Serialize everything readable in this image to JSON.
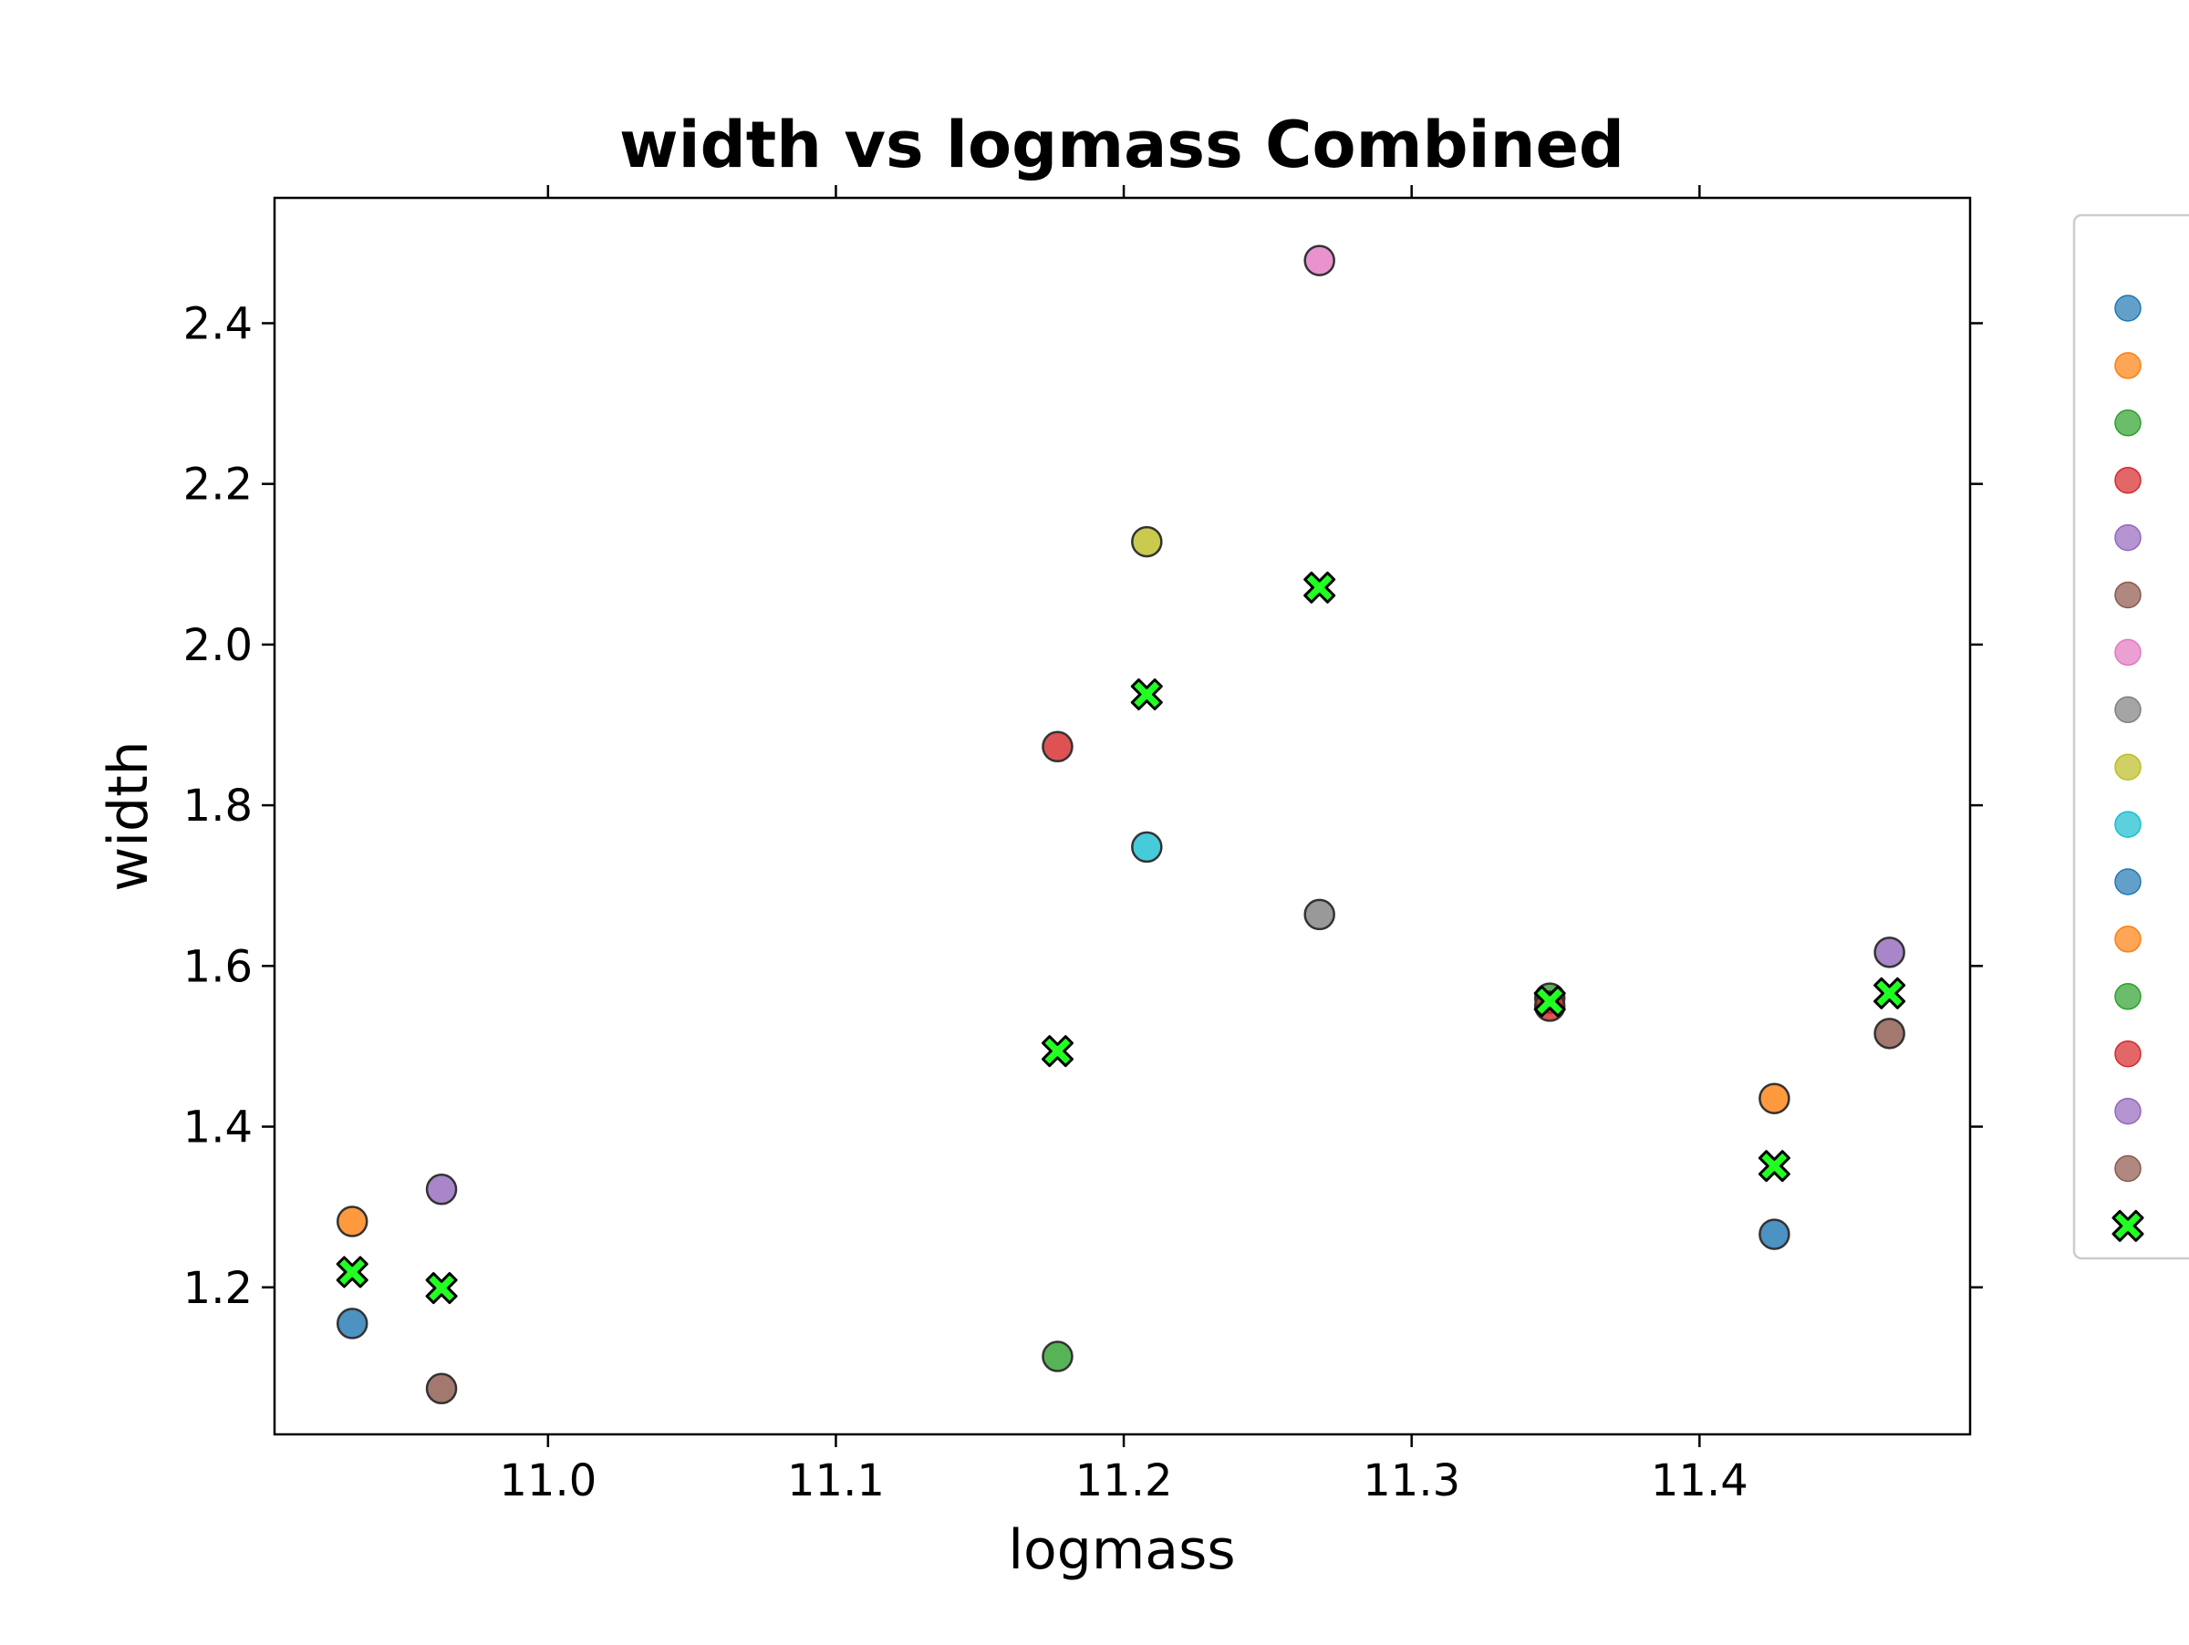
{
  "chart_data": {
    "type": "scatter",
    "title": "width vs logmass Combined",
    "xlabel": "logmass",
    "ylabel": "width",
    "xlim": [
      10.905,
      11.494
    ],
    "ylim": [
      1.017,
      2.556
    ],
    "xticks": [
      "11.0",
      "11.1",
      "11.2",
      "11.3",
      "11.4"
    ],
    "xtick_values": [
      11.0,
      11.1,
      11.2,
      11.3,
      11.4
    ],
    "yticks": [
      "1.2",
      "1.4",
      "1.6",
      "1.8",
      "2.0",
      "2.2",
      "2.4"
    ],
    "ytick_values": [
      1.2,
      1.4,
      1.6,
      1.8,
      2.0,
      2.2,
      2.4
    ],
    "grid": false,
    "legend_placement": "outside-right",
    "marker_colors": [
      "#1f77b4",
      "#ff7f0e",
      "#2ca02c",
      "#d62728",
      "#9467bd",
      "#8c564b",
      "#e377c2",
      "#7f7f7f",
      "#bcbd22",
      "#17becf"
    ],
    "highlight_color": "#22ff22",
    "series": [
      {
        "color": "#1f77b4",
        "points": [
          [
            10.932,
            1.155
          ],
          [
            11.426,
            1.266
          ]
        ]
      },
      {
        "color": "#ff7f0e",
        "points": [
          [
            10.932,
            1.282
          ],
          [
            11.426,
            1.435
          ]
        ]
      },
      {
        "color": "#2ca02c",
        "points": [
          [
            11.177,
            1.114
          ],
          [
            11.348,
            1.56
          ]
        ]
      },
      {
        "color": "#d62728",
        "points": [
          [
            11.177,
            1.873
          ],
          [
            11.348,
            1.55
          ]
        ]
      },
      {
        "color": "#9467bd",
        "points": [
          [
            10.963,
            1.322
          ],
          [
            11.466,
            1.617
          ]
        ]
      },
      {
        "color": "#8c564b",
        "points": [
          [
            10.963,
            1.074
          ],
          [
            11.466,
            1.516
          ]
        ]
      },
      {
        "color": "#e377c2",
        "points": [
          [
            11.268,
            2.478
          ]
        ]
      },
      {
        "color": "#7f7f7f",
        "points": [
          [
            11.268,
            1.664
          ]
        ]
      },
      {
        "color": "#bcbd22",
        "points": [
          [
            11.208,
            2.128
          ]
        ]
      },
      {
        "color": "#17becf",
        "points": [
          [
            11.208,
            1.748
          ]
        ]
      }
    ],
    "combined": {
      "marker": "X",
      "color": "#22ff22",
      "points": [
        [
          10.932,
          1.219
        ],
        [
          10.963,
          1.199
        ],
        [
          11.177,
          1.494
        ],
        [
          11.208,
          1.938
        ],
        [
          11.268,
          2.071
        ],
        [
          11.348,
          1.556
        ],
        [
          11.426,
          1.351
        ],
        [
          11.466,
          1.566
        ]
      ]
    },
    "legend_entries": [
      {
        "color": "#1f77b4",
        "marker": "o"
      },
      {
        "color": "#ff7f0e",
        "marker": "o"
      },
      {
        "color": "#2ca02c",
        "marker": "o"
      },
      {
        "color": "#d62728",
        "marker": "o"
      },
      {
        "color": "#9467bd",
        "marker": "o"
      },
      {
        "color": "#8c564b",
        "marker": "o"
      },
      {
        "color": "#e377c2",
        "marker": "o"
      },
      {
        "color": "#7f7f7f",
        "marker": "o"
      },
      {
        "color": "#bcbd22",
        "marker": "o"
      },
      {
        "color": "#17becf",
        "marker": "o"
      },
      {
        "color": "#1f77b4",
        "marker": "o"
      },
      {
        "color": "#ff7f0e",
        "marker": "o"
      },
      {
        "color": "#2ca02c",
        "marker": "o"
      },
      {
        "color": "#d62728",
        "marker": "o"
      },
      {
        "color": "#9467bd",
        "marker": "o"
      },
      {
        "color": "#8c564b",
        "marker": "o"
      },
      {
        "color": "#22ff22",
        "marker": "X"
      }
    ]
  }
}
